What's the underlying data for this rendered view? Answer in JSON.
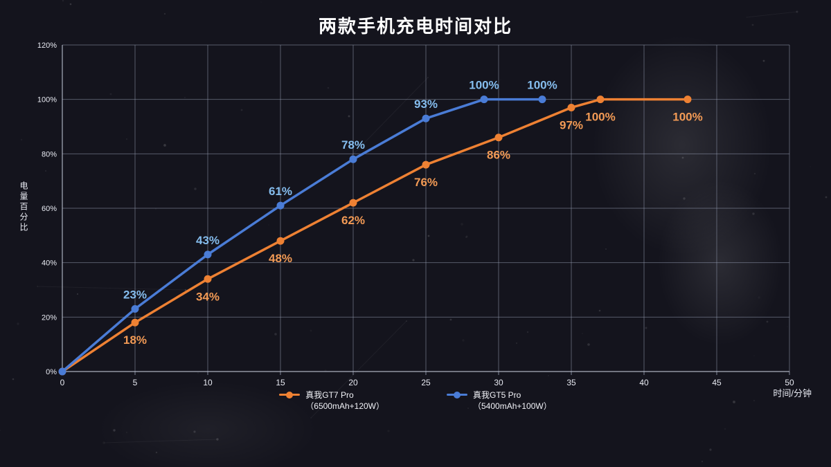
{
  "title": "两款手机充电时间对比",
  "colors": {
    "background": "#14141d",
    "grid": "#9aa2b8",
    "tick_text": "#e8eaf2",
    "title_text": "#ffffff"
  },
  "chart_data": {
    "type": "line",
    "title": "两款手机充电时间对比",
    "xlabel": "时间/分钟",
    "ylabel": "电量百分比",
    "xlim": [
      0,
      50
    ],
    "ylim": [
      0,
      120
    ],
    "grid": true,
    "legend_position": "bottom",
    "x_ticks": [
      {
        "value": 0,
        "label": "0"
      },
      {
        "value": 5,
        "label": "5"
      },
      {
        "value": 10,
        "label": "10"
      },
      {
        "value": 15,
        "label": "15"
      },
      {
        "value": 20,
        "label": "20"
      },
      {
        "value": 25,
        "label": "25"
      },
      {
        "value": 30,
        "label": "30"
      },
      {
        "value": 35,
        "label": "35"
      },
      {
        "value": 40,
        "label": "40"
      },
      {
        "value": 45,
        "label": "45"
      },
      {
        "value": 50,
        "label": "50"
      }
    ],
    "y_ticks": [
      {
        "value": 0,
        "label": "0%"
      },
      {
        "value": 20,
        "label": "20%"
      },
      {
        "value": 40,
        "label": "40%"
      },
      {
        "value": 60,
        "label": "60%"
      },
      {
        "value": 80,
        "label": "80%"
      },
      {
        "value": 100,
        "label": "100%"
      },
      {
        "value": 120,
        "label": "120%"
      }
    ],
    "series": [
      {
        "name": "真我GT7 Pro",
        "spec": "（6500mAh+120W）",
        "color": "#ee8133",
        "label_color": "#f29a55",
        "label_position": "below",
        "points": [
          {
            "x": 0,
            "y": 0
          },
          {
            "x": 5,
            "y": 18,
            "label": "18%"
          },
          {
            "x": 10,
            "y": 34,
            "label": "34%"
          },
          {
            "x": 15,
            "y": 48,
            "label": "48%"
          },
          {
            "x": 20,
            "y": 62,
            "label": "62%"
          },
          {
            "x": 25,
            "y": 76,
            "label": "76%"
          },
          {
            "x": 30,
            "y": 86,
            "label": "86%"
          },
          {
            "x": 35,
            "y": 97,
            "label": "97%"
          },
          {
            "x": 37,
            "y": 100,
            "label": "100%"
          },
          {
            "x": 43,
            "y": 100,
            "label": "100%"
          }
        ]
      },
      {
        "name": "真我GT5 Pro",
        "spec": "（5400mAh+100W）",
        "color": "#4a7cd6",
        "label_color": "#85bdee",
        "label_position": "above",
        "points": [
          {
            "x": 0,
            "y": 0
          },
          {
            "x": 5,
            "y": 23,
            "label": "23%"
          },
          {
            "x": 10,
            "y": 43,
            "label": "43%"
          },
          {
            "x": 15,
            "y": 61,
            "label": "61%"
          },
          {
            "x": 20,
            "y": 78,
            "label": "78%"
          },
          {
            "x": 25,
            "y": 93,
            "label": "93%"
          },
          {
            "x": 29,
            "y": 100,
            "label": "100%"
          },
          {
            "x": 33,
            "y": 100,
            "label": "100%"
          }
        ]
      }
    ]
  }
}
